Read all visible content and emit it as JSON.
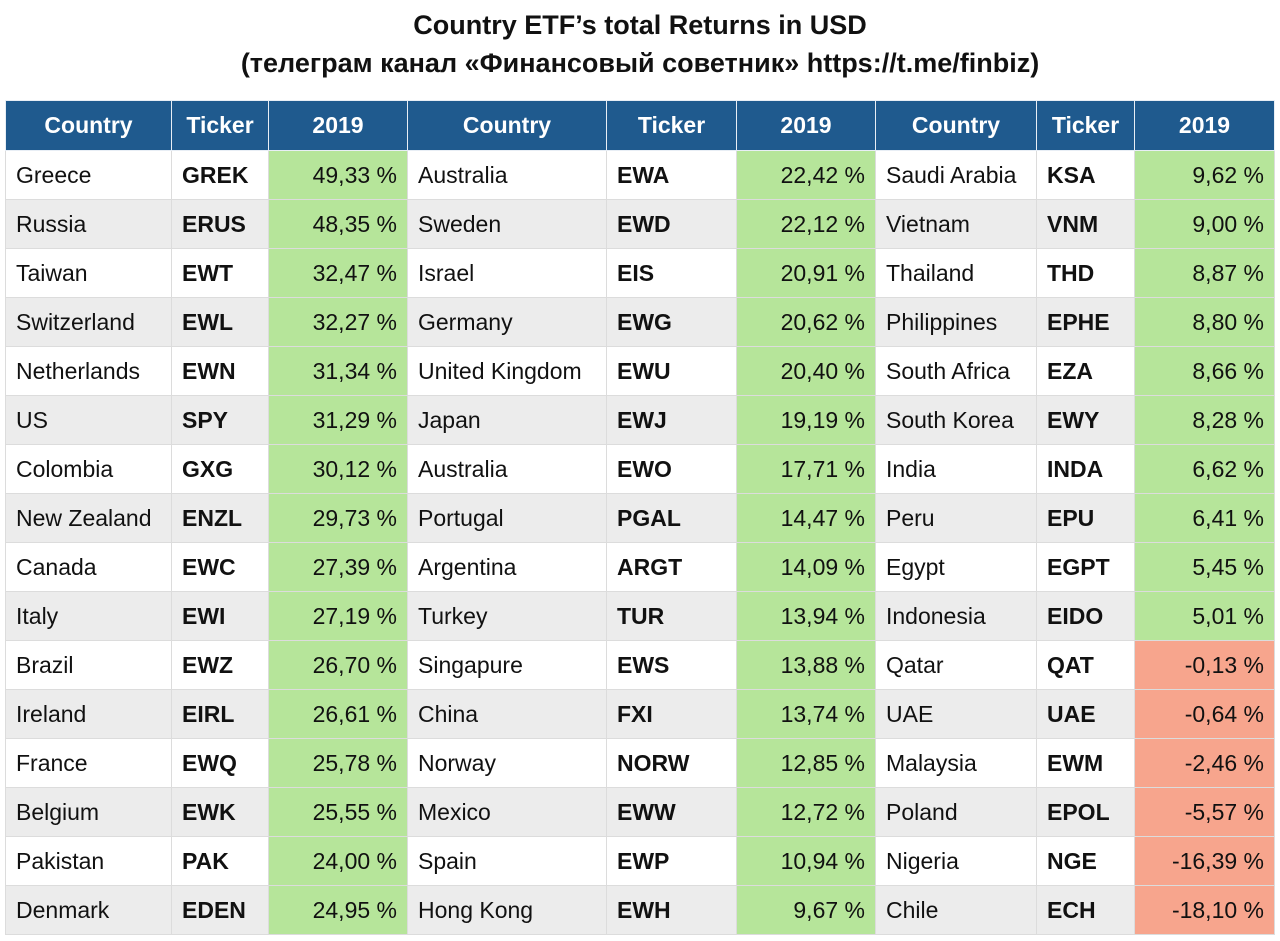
{
  "title_line1": "Country ETF’s total Returns in USD",
  "title_line2": "(телеграм канал «Финансовый советник» https://t.me/finbiz)",
  "headers": [
    "Country",
    "Ticker",
    "2019",
    "Country",
    "Ticker",
    "2019",
    "Country",
    "Ticker",
    "2019"
  ],
  "colors": {
    "header": "#1f5a8e",
    "positive": "#b6e59a",
    "negative": "#f7a58d",
    "stripe": "#ececec"
  },
  "rows": [
    [
      "Greece",
      "GREK",
      "49,33 %",
      "Australia",
      "EWA",
      "22,42 %",
      "Saudi Arabia",
      "KSA",
      "9,62 %"
    ],
    [
      "Russia",
      "ERUS",
      "48,35 %",
      "Sweden",
      "EWD",
      "22,12 %",
      "Vietnam",
      "VNM",
      "9,00 %"
    ],
    [
      "Taiwan",
      "EWT",
      "32,47 %",
      "Israel",
      "EIS",
      "20,91 %",
      "Thailand",
      "THD",
      "8,87 %"
    ],
    [
      "Switzerland",
      "EWL",
      "32,27 %",
      "Germany",
      "EWG",
      "20,62 %",
      "Philippines",
      "EPHE",
      "8,80 %"
    ],
    [
      "Netherlands",
      "EWN",
      "31,34 %",
      "United Kingdom",
      "EWU",
      "20,40 %",
      "South Africa",
      "EZA",
      "8,66 %"
    ],
    [
      "US",
      "SPY",
      "31,29 %",
      "Japan",
      "EWJ",
      "19,19 %",
      "South Korea",
      "EWY",
      "8,28 %"
    ],
    [
      "Colombia",
      "GXG",
      "30,12 %",
      "Australia",
      "EWO",
      "17,71 %",
      "India",
      "INDA",
      "6,62 %"
    ],
    [
      "New Zealand",
      "ENZL",
      "29,73 %",
      "Portugal",
      "PGAL",
      "14,47 %",
      "Peru",
      "EPU",
      "6,41 %"
    ],
    [
      "Canada",
      "EWC",
      "27,39 %",
      "Argentina",
      "ARGT",
      "14,09 %",
      "Egypt",
      "EGPT",
      "5,45 %"
    ],
    [
      "Italy",
      "EWI",
      "27,19 %",
      "Turkey",
      "TUR",
      "13,94 %",
      "Indonesia",
      "EIDO",
      "5,01 %"
    ],
    [
      "Brazil",
      "EWZ",
      "26,70 %",
      "Singapure",
      "EWS",
      "13,88 %",
      "Qatar",
      "QAT",
      "-0,13 %"
    ],
    [
      "Ireland",
      "EIRL",
      "26,61 %",
      "China",
      "FXI",
      "13,74 %",
      "UAE",
      "UAE",
      "-0,64 %"
    ],
    [
      "France",
      "EWQ",
      "25,78 %",
      "Norway",
      "NORW",
      "12,85 %",
      "Malaysia",
      "EWM",
      "-2,46 %"
    ],
    [
      "Belgium",
      "EWK",
      "25,55 %",
      "Mexico",
      "EWW",
      "12,72 %",
      "Poland",
      "EPOL",
      "-5,57 %"
    ],
    [
      "Pakistan",
      "PAK",
      "24,00 %",
      "Spain",
      "EWP",
      "10,94 %",
      "Nigeria",
      "NGE",
      "-16,39 %"
    ],
    [
      "Denmark",
      "EDEN",
      "24,95 %",
      "Hong Kong",
      "EWH",
      "9,67 %",
      "Chile",
      "ECH",
      "-18,10 %"
    ]
  ]
}
